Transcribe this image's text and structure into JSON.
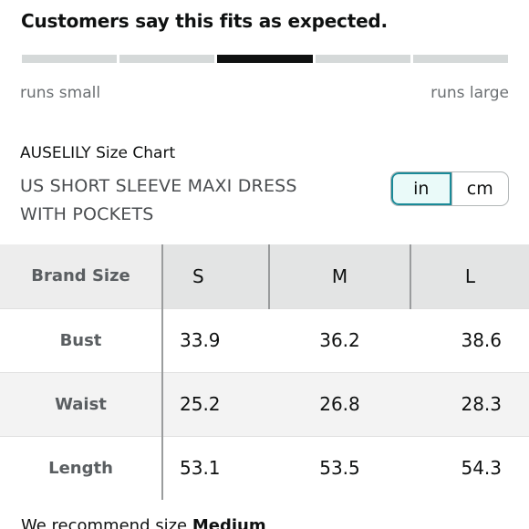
{
  "fit": {
    "title": "Customers say this fits as expected.",
    "segments": 5,
    "active_segment": 3,
    "left_label": "runs small",
    "right_label": "runs large"
  },
  "chart": {
    "brand_title": "AUSELILY Size Chart",
    "product_name": "US SHORT SLEEVE MAXI DRESS WITH POCKETS"
  },
  "units": {
    "options": [
      "in",
      "cm"
    ],
    "selected": "in"
  },
  "table": {
    "header_label": "Brand Size",
    "sizes": [
      "S",
      "M",
      "L"
    ],
    "rows": [
      {
        "label": "Bust",
        "values": [
          "33.9",
          "36.2",
          "38.6"
        ]
      },
      {
        "label": "Waist",
        "values": [
          "25.2",
          "26.8",
          "28.3"
        ]
      },
      {
        "label": "Length",
        "values": [
          "53.1",
          "53.5",
          "54.3"
        ]
      }
    ]
  },
  "recommendation": {
    "prefix": "We recommend size",
    "size": "Medium"
  },
  "colors": {
    "active_segment": "#0f1111",
    "inactive_segment": "#d5d9d9",
    "toggle_selected_border": "#1a8a98",
    "toggle_selected_bg": "#eafaf9"
  }
}
